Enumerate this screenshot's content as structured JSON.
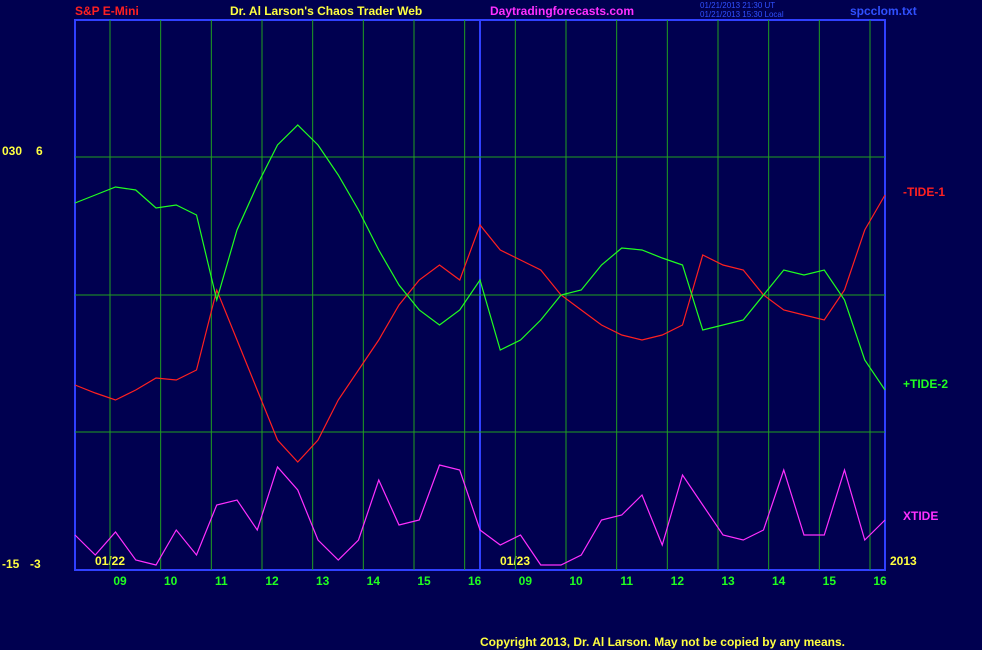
{
  "chart_data": {
    "type": "line",
    "title": "Dr. Al Larson's Chaos Trader Web",
    "instrument": "S&P E-Mini",
    "site": "Daytradingforecasts.com",
    "timestamps": [
      "01/21/2013 21:30 UT",
      "01/21/2013 15:30 Local"
    ],
    "file": "spcclom.txt",
    "left_top_labels": [
      "030",
      "6"
    ],
    "left_bottom_labels": [
      "-15",
      "-3"
    ],
    "date_labels": [
      "01/22",
      "01/23",
      "2013"
    ],
    "copyright": "Copyright 2013, Dr. Al Larson. May not be copied by any means.",
    "hour_labels": [
      "09",
      "10",
      "11",
      "12",
      "13",
      "14",
      "15",
      "16",
      "09",
      "10",
      "11",
      "12",
      "13",
      "14",
      "15",
      "16"
    ],
    "ylim": [
      0,
      550
    ],
    "yticks": [
      138,
      275,
      413
    ],
    "grid": true,
    "series": [
      {
        "name": "-TIDE-1",
        "color": "#ff2020",
        "values": [
          185,
          177,
          170,
          180,
          192,
          190,
          200,
          280,
          230,
          180,
          130,
          108,
          130,
          170,
          200,
          230,
          265,
          290,
          305,
          290,
          345,
          320,
          310,
          300,
          275,
          260,
          245,
          235,
          230,
          235,
          245,
          315,
          305,
          300,
          275,
          260,
          255,
          250,
          280,
          340,
          375
        ]
      },
      {
        "name": "+TIDE-2",
        "color": "#20ff20",
        "values": [
          367,
          375,
          383,
          380,
          362,
          365,
          355,
          270,
          340,
          385,
          425,
          445,
          425,
          395,
          360,
          320,
          285,
          260,
          245,
          260,
          290,
          220,
          230,
          250,
          275,
          280,
          305,
          322,
          320,
          312,
          305,
          240,
          245,
          250,
          275,
          300,
          295,
          300,
          270,
          210,
          180
        ]
      },
      {
        "name": "XTIDE",
        "color": "#ff30ff",
        "values": [
          35,
          15,
          38,
          10,
          5,
          40,
          15,
          65,
          70,
          40,
          103,
          80,
          30,
          10,
          30,
          90,
          45,
          50,
          105,
          100,
          40,
          25,
          35,
          5,
          5,
          15,
          50,
          55,
          75,
          25,
          95,
          65,
          35,
          30,
          40,
          100,
          35,
          35,
          100,
          30,
          50
        ]
      }
    ]
  }
}
